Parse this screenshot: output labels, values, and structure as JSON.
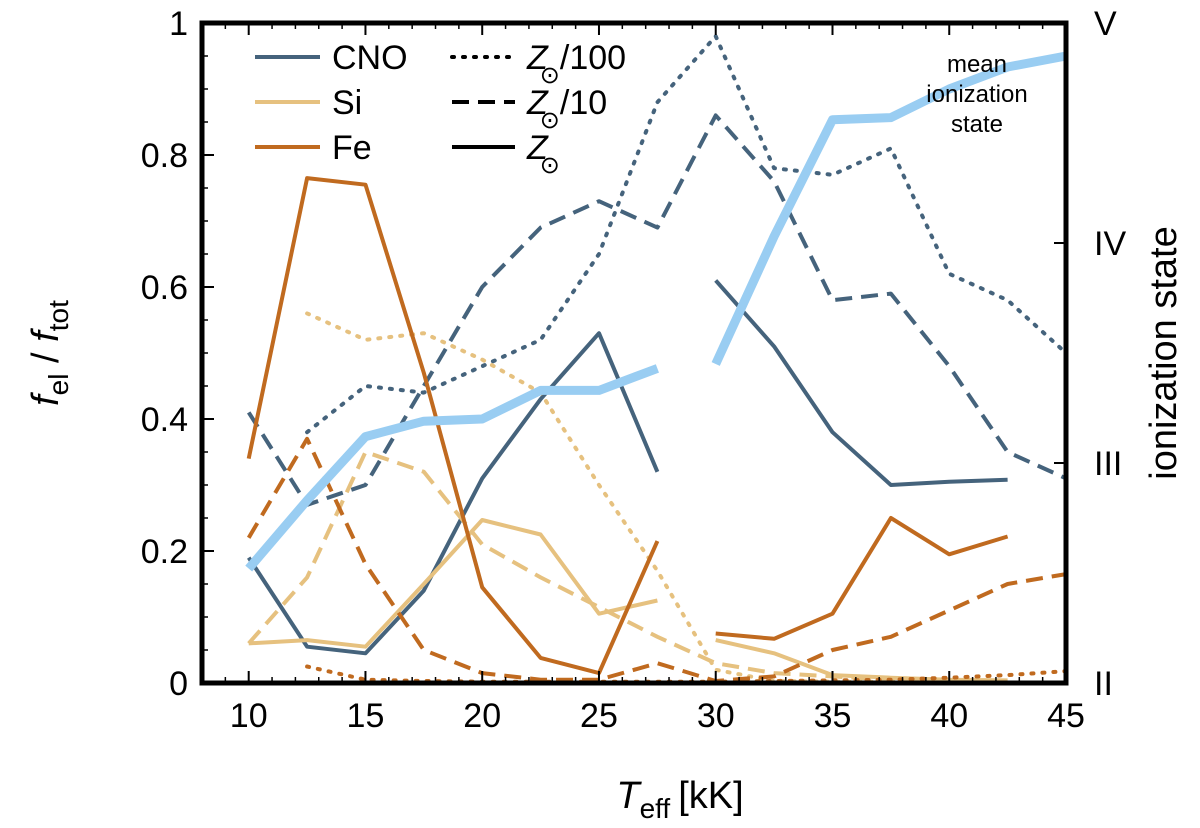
{
  "chart_data": {
    "type": "line",
    "xlabel": {
      "main": "T",
      "sub": "eff",
      "unit": "[kK]"
    },
    "ylabel": {
      "f1": "f",
      "f1_sub": "el",
      "sep": " / ",
      "f2": "f",
      "f2_sub": "tot"
    },
    "y2label": "ionization state",
    "xlim": [
      8,
      45
    ],
    "ylim": [
      0,
      1
    ],
    "xticks": [
      "10",
      "15",
      "20",
      "25",
      "30",
      "35",
      "40",
      "45"
    ],
    "yticks": [
      "0",
      "0.2",
      "0.4",
      "0.6",
      "0.8",
      "1"
    ],
    "y2ticks": [
      "II",
      "III",
      "IV",
      "V"
    ],
    "grid": false,
    "legend": {
      "placement": "top-left",
      "elements": [
        {
          "label": "CNO",
          "color": "#45637c",
          "style": "solid"
        },
        {
          "label": "Si",
          "color": "#e6c17f",
          "style": "solid"
        },
        {
          "label": "Fe",
          "color": "#c06a1f",
          "style": "solid"
        }
      ],
      "metallicities": [
        {
          "base": "Z",
          "suffix": "/100",
          "style": "dotted"
        },
        {
          "base": "Z",
          "suffix": "/10",
          "style": "dashed"
        },
        {
          "base": "Z",
          "suffix": "",
          "style": "solid"
        }
      ],
      "sun_symbol": "⊙"
    },
    "annotation": [
      "mean",
      "ionization",
      "state"
    ],
    "colors": {
      "CNO": "#45637c",
      "Si": "#e6c17f",
      "Fe": "#c06a1f",
      "ionization": "#99cdf2"
    },
    "series": [
      {
        "element": "CNO",
        "metallicity": "Z/100",
        "segments": [
          [
            [
              12.5,
              0.38
            ],
            [
              15,
              0.45
            ],
            [
              17.5,
              0.44
            ],
            [
              20,
              0.48
            ],
            [
              22.5,
              0.52
            ],
            [
              25,
              0.65
            ],
            [
              27.5,
              0.88
            ],
            [
              30,
              0.98
            ],
            [
              32.5,
              0.78
            ],
            [
              35,
              0.77
            ],
            [
              37.5,
              0.81
            ],
            [
              40,
              0.62
            ],
            [
              42.5,
              0.58
            ],
            [
              45,
              0.5
            ]
          ]
        ]
      },
      {
        "element": "CNO",
        "metallicity": "Z/10",
        "segments": [
          [
            [
              10,
              0.41
            ],
            [
              12.5,
              0.27
            ],
            [
              15,
              0.3
            ],
            [
              17.5,
              0.45
            ],
            [
              20,
              0.6
            ],
            [
              22.5,
              0.69
            ],
            [
              25,
              0.73
            ],
            [
              27.5,
              0.69
            ],
            [
              30,
              0.86
            ],
            [
              32.5,
              0.76
            ],
            [
              35,
              0.58
            ],
            [
              37.5,
              0.59
            ],
            [
              40,
              0.48
            ],
            [
              42.5,
              0.35
            ],
            [
              45,
              0.31
            ]
          ]
        ]
      },
      {
        "element": "CNO",
        "metallicity": "Z",
        "segments": [
          [
            [
              10,
              0.19
            ],
            [
              12.5,
              0.055
            ],
            [
              15,
              0.045
            ],
            [
              17.5,
              0.14
            ],
            [
              20,
              0.31
            ],
            [
              22.5,
              0.43
            ],
            [
              25,
              0.53
            ],
            [
              27.5,
              0.32
            ]
          ],
          [
            [
              30,
              0.61
            ],
            [
              32.5,
              0.51
            ],
            [
              35,
              0.38
            ],
            [
              37.5,
              0.3
            ],
            [
              40,
              0.305
            ],
            [
              42.5,
              0.308
            ]
          ]
        ]
      },
      {
        "element": "Si",
        "metallicity": "Z/100",
        "segments": [
          [
            [
              12.5,
              0.56
            ],
            [
              15,
              0.52
            ],
            [
              17.5,
              0.53
            ],
            [
              20,
              0.49
            ],
            [
              22.5,
              0.44
            ],
            [
              25,
              0.3
            ],
            [
              27.5,
              0.17
            ],
            [
              30,
              0.02
            ],
            [
              32.5,
              0.003
            ],
            [
              35,
              0.002
            ],
            [
              37.5,
              0.002
            ],
            [
              40,
              0.002
            ]
          ]
        ]
      },
      {
        "element": "Si",
        "metallicity": "Z/10",
        "segments": [
          [
            [
              10,
              0.06
            ],
            [
              12.5,
              0.16
            ],
            [
              15,
              0.35
            ],
            [
              17.5,
              0.32
            ],
            [
              20,
              0.21
            ],
            [
              22.5,
              0.16
            ],
            [
              25,
              0.115
            ],
            [
              27.5,
              0.07
            ],
            [
              30,
              0.03
            ],
            [
              32.5,
              0.015
            ],
            [
              35,
              0.01
            ],
            [
              37.5,
              0.005
            ],
            [
              40,
              0.005
            ]
          ]
        ]
      },
      {
        "element": "Si",
        "metallicity": "Z",
        "segments": [
          [
            [
              10,
              0.06
            ],
            [
              12.5,
              0.065
            ],
            [
              15,
              0.055
            ],
            [
              17.5,
              0.15
            ],
            [
              20,
              0.247
            ],
            [
              22.5,
              0.225
            ],
            [
              25,
              0.105
            ],
            [
              27.5,
              0.125
            ]
          ],
          [
            [
              30,
              0.065
            ],
            [
              32.5,
              0.045
            ],
            [
              35,
              0.012
            ],
            [
              37.5,
              0.008
            ],
            [
              40,
              0.005
            ],
            [
              42.5,
              0.004
            ]
          ]
        ]
      },
      {
        "element": "Fe",
        "metallicity": "Z/100",
        "segments": [
          [
            [
              12.5,
              0.025
            ],
            [
              15,
              0.005
            ],
            [
              17.5,
              0.003
            ],
            [
              20,
              0.002
            ],
            [
              22.5,
              0.002
            ],
            [
              25,
              0.002
            ],
            [
              27.5,
              0.002
            ],
            [
              30,
              0.002
            ],
            [
              32.5,
              0.003
            ],
            [
              35,
              0.004
            ],
            [
              37.5,
              0.005
            ],
            [
              40,
              0.008
            ],
            [
              42.5,
              0.012
            ],
            [
              45,
              0.018
            ]
          ]
        ]
      },
      {
        "element": "Fe",
        "metallicity": "Z/10",
        "segments": [
          [
            [
              10,
              0.22
            ],
            [
              12.5,
              0.37
            ],
            [
              15,
              0.18
            ],
            [
              17.5,
              0.05
            ],
            [
              20,
              0.015
            ],
            [
              22.5,
              0.005
            ],
            [
              25,
              0.005
            ],
            [
              27.5,
              0.03
            ],
            [
              30,
              0.003
            ],
            [
              32.5,
              0.01
            ],
            [
              35,
              0.05
            ],
            [
              37.5,
              0.07
            ],
            [
              40,
              0.11
            ],
            [
              42.5,
              0.15
            ],
            [
              45,
              0.165
            ]
          ]
        ]
      },
      {
        "element": "Fe",
        "metallicity": "Z",
        "segments": [
          [
            [
              10,
              0.34
            ],
            [
              12.5,
              0.765
            ],
            [
              15,
              0.755
            ],
            [
              17.5,
              0.47
            ],
            [
              20,
              0.145
            ],
            [
              22.5,
              0.038
            ],
            [
              25,
              0.015
            ],
            [
              27.5,
              0.215
            ]
          ],
          [
            [
              30,
              0.075
            ],
            [
              32.5,
              0.067
            ],
            [
              35,
              0.105
            ],
            [
              37.5,
              0.25
            ],
            [
              40,
              0.195
            ],
            [
              42.5,
              0.222
            ]
          ]
        ]
      }
    ],
    "ionization_state": {
      "axis": "right",
      "segments": [
        [
          [
            10,
            2.52
          ],
          [
            12.5,
            2.83
          ],
          [
            15,
            3.12
          ],
          [
            17.5,
            3.19
          ],
          [
            20,
            3.2
          ],
          [
            22.5,
            3.33
          ],
          [
            25,
            3.33
          ],
          [
            27.5,
            3.43
          ]
        ],
        [
          [
            30,
            3.45
          ],
          [
            32.5,
            4.03
          ],
          [
            35,
            4.56
          ],
          [
            37.5,
            4.57
          ],
          [
            40,
            4.7
          ],
          [
            42.5,
            4.8
          ],
          [
            45,
            4.85
          ]
        ]
      ],
      "range": [
        2,
        5
      ]
    }
  }
}
